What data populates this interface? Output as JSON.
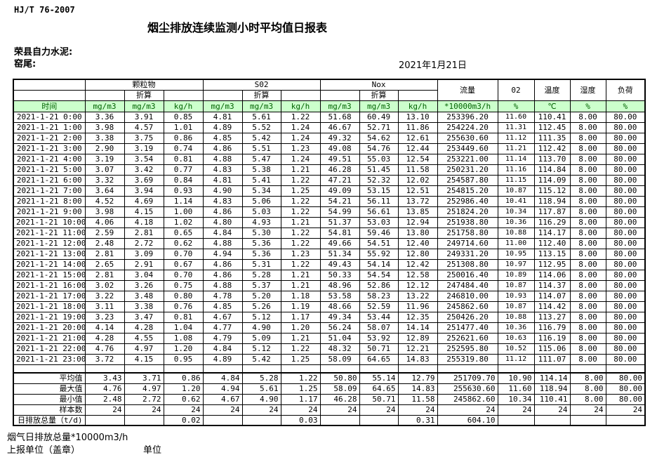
{
  "colors": {
    "unit_row_bg": "#ccffcc",
    "unit_row_text": "#006100",
    "border": "#000000"
  },
  "header": {
    "standard": "HJ/T  76-2007",
    "title": "烟尘排放连续监测小时平均值日报表",
    "company": "荣县自力水泥:",
    "location": "窑尾:",
    "date": "2021年1月21日"
  },
  "table": {
    "time_label": "时间",
    "group_labels": [
      "颗粒物",
      "S02",
      "Nox"
    ],
    "converted_label": "折算",
    "right_headers": [
      "流量",
      "02",
      "温度",
      "湿度",
      "负荷"
    ],
    "units": [
      "mg/m3",
      "mg/m3",
      "kg/h",
      "mg/m3",
      "mg/m3",
      "kg/h",
      "mg/m3",
      "mg/m3",
      "kg/h",
      "*10000m3/h",
      "%",
      "℃",
      "%",
      "%"
    ],
    "rows": [
      {
        "time": "2021-1-21 0:00",
        "values": [
          "3.36",
          "3.91",
          "0.85",
          "4.81",
          "5.61",
          "1.22",
          "51.68",
          "60.49",
          "13.10",
          "253396.20",
          "11.60",
          "110.41",
          "8.00",
          "80.00"
        ]
      },
      {
        "time": "2021-1-21 1:00",
        "values": [
          "3.98",
          "4.57",
          "1.01",
          "4.89",
          "5.52",
          "1.24",
          "46.67",
          "52.71",
          "11.86",
          "254224.20",
          "11.31",
          "112.45",
          "8.00",
          "80.00"
        ]
      },
      {
        "time": "2021-1-21 2:00",
        "values": [
          "3.38",
          "3.75",
          "0.86",
          "4.85",
          "5.42",
          "1.24",
          "49.32",
          "54.62",
          "12.61",
          "255630.60",
          "11.12",
          "111.35",
          "8.00",
          "80.00"
        ]
      },
      {
        "time": "2021-1-21 3:00",
        "values": [
          "2.90",
          "3.19",
          "0.74",
          "4.86",
          "5.51",
          "1.23",
          "49.08",
          "54.76",
          "12.44",
          "253449.60",
          "11.21",
          "112.42",
          "8.00",
          "80.00"
        ]
      },
      {
        "time": "2021-1-21 4:00",
        "values": [
          "3.19",
          "3.54",
          "0.81",
          "4.88",
          "5.47",
          "1.24",
          "49.51",
          "55.03",
          "12.54",
          "253221.00",
          "11.14",
          "113.70",
          "8.00",
          "80.00"
        ]
      },
      {
        "time": "2021-1-21 5:00",
        "values": [
          "3.07",
          "3.42",
          "0.77",
          "4.83",
          "5.38",
          "1.21",
          "46.28",
          "51.45",
          "11.58",
          "250231.20",
          "11.16",
          "114.84",
          "8.00",
          "80.00"
        ]
      },
      {
        "time": "2021-1-21 6:00",
        "values": [
          "3.32",
          "3.69",
          "0.84",
          "4.81",
          "5.41",
          "1.22",
          "47.21",
          "52.32",
          "12.02",
          "254587.80",
          "11.15",
          "114.09",
          "8.00",
          "80.00"
        ]
      },
      {
        "time": "2021-1-21 7:00",
        "values": [
          "3.64",
          "3.94",
          "0.93",
          "4.90",
          "5.34",
          "1.25",
          "49.09",
          "53.15",
          "12.51",
          "254815.20",
          "10.87",
          "115.12",
          "8.00",
          "80.00"
        ]
      },
      {
        "time": "2021-1-21 8:00",
        "values": [
          "4.52",
          "4.69",
          "1.14",
          "4.83",
          "5.06",
          "1.22",
          "54.21",
          "56.11",
          "13.72",
          "252986.40",
          "10.41",
          "118.94",
          "8.00",
          "80.00"
        ]
      },
      {
        "time": "2021-1-21 9:00",
        "values": [
          "3.98",
          "4.15",
          "1.00",
          "4.86",
          "5.03",
          "1.22",
          "54.99",
          "56.61",
          "13.85",
          "251824.20",
          "10.34",
          "117.87",
          "8.00",
          "80.00"
        ]
      },
      {
        "time": "2021-1-21 10:00",
        "values": [
          "4.06",
          "4.18",
          "1.02",
          "4.80",
          "4.93",
          "1.21",
          "51.37",
          "53.03",
          "12.94",
          "251938.80",
          "10.36",
          "116.29",
          "8.00",
          "80.00"
        ]
      },
      {
        "time": "2021-1-21 11:00",
        "values": [
          "2.59",
          "2.81",
          "0.65",
          "4.84",
          "5.30",
          "1.22",
          "54.81",
          "59.46",
          "13.80",
          "251758.80",
          "10.88",
          "114.17",
          "8.00",
          "80.00"
        ]
      },
      {
        "time": "2021-1-21 12:00",
        "values": [
          "2.48",
          "2.72",
          "0.62",
          "4.88",
          "5.36",
          "1.22",
          "49.66",
          "54.51",
          "12.40",
          "249714.60",
          "11.00",
          "112.40",
          "8.00",
          "80.00"
        ]
      },
      {
        "time": "2021-1-21 13:00",
        "values": [
          "2.81",
          "3.09",
          "0.70",
          "4.94",
          "5.36",
          "1.23",
          "51.34",
          "55.92",
          "12.80",
          "249331.20",
          "10.95",
          "113.15",
          "8.00",
          "80.00"
        ]
      },
      {
        "time": "2021-1-21 14:00",
        "values": [
          "2.65",
          "2.91",
          "0.67",
          "4.86",
          "5.31",
          "1.22",
          "49.43",
          "54.14",
          "12.42",
          "251308.80",
          "10.97",
          "112.95",
          "8.00",
          "80.00"
        ]
      },
      {
        "time": "2021-1-21 15:00",
        "values": [
          "2.81",
          "3.04",
          "0.70",
          "4.86",
          "5.28",
          "1.21",
          "50.33",
          "54.54",
          "12.58",
          "250016.40",
          "10.89",
          "114.06",
          "8.00",
          "80.00"
        ]
      },
      {
        "time": "2021-1-21 16:00",
        "values": [
          "3.02",
          "3.26",
          "0.75",
          "4.88",
          "5.37",
          "1.21",
          "48.96",
          "52.86",
          "12.12",
          "247484.40",
          "10.87",
          "114.37",
          "8.00",
          "80.00"
        ]
      },
      {
        "time": "2021-1-21 17:00",
        "values": [
          "3.22",
          "3.48",
          "0.80",
          "4.78",
          "5.20",
          "1.18",
          "53.58",
          "58.23",
          "13.22",
          "246810.00",
          "10.93",
          "114.07",
          "8.00",
          "80.00"
        ]
      },
      {
        "time": "2021-1-21 18:00",
        "values": [
          "3.11",
          "3.38",
          "0.76",
          "4.85",
          "5.26",
          "1.19",
          "48.66",
          "52.59",
          "11.96",
          "245862.60",
          "10.87",
          "114.42",
          "8.00",
          "80.00"
        ]
      },
      {
        "time": "2021-1-21 19:00",
        "values": [
          "3.23",
          "3.47",
          "0.81",
          "4.67",
          "5.12",
          "1.17",
          "49.34",
          "53.44",
          "12.35",
          "250426.20",
          "10.88",
          "113.27",
          "8.00",
          "80.00"
        ]
      },
      {
        "time": "2021-1-21 20:00",
        "values": [
          "4.14",
          "4.28",
          "1.04",
          "4.77",
          "4.90",
          "1.20",
          "56.24",
          "58.07",
          "14.14",
          "251477.40",
          "10.36",
          "116.79",
          "8.00",
          "80.00"
        ]
      },
      {
        "time": "2021-1-21 21:00",
        "values": [
          "4.28",
          "4.55",
          "1.08",
          "4.79",
          "5.09",
          "1.21",
          "51.04",
          "53.92",
          "12.89",
          "252621.60",
          "10.63",
          "116.19",
          "8.00",
          "80.00"
        ]
      },
      {
        "time": "2021-1-21 22:00",
        "values": [
          "4.76",
          "4.97",
          "1.20",
          "4.84",
          "5.12",
          "1.22",
          "48.32",
          "50.71",
          "12.21",
          "252595.80",
          "10.52",
          "115.06",
          "8.00",
          "80.00"
        ]
      },
      {
        "time": "2021-1-21 23:00",
        "values": [
          "3.72",
          "4.15",
          "0.95",
          "4.89",
          "5.42",
          "1.25",
          "58.09",
          "64.65",
          "14.83",
          "255319.80",
          "11.12",
          "111.07",
          "8.00",
          "80.00"
        ]
      }
    ],
    "summary_rows": [
      {
        "label": "平均值",
        "values": [
          "3.43",
          "3.71",
          "0.86",
          "4.84",
          "5.28",
          "1.22",
          "50.80",
          "55.14",
          "12.79",
          "251709.70",
          "10.90",
          "114.14",
          "8.00",
          "80.00"
        ]
      },
      {
        "label": "最大值",
        "values": [
          "4.76",
          "4.97",
          "1.20",
          "4.94",
          "5.61",
          "1.25",
          "58.09",
          "64.65",
          "14.83",
          "255630.60",
          "11.60",
          "118.94",
          "8.00",
          "80.00"
        ]
      },
      {
        "label": "最小值",
        "values": [
          "2.48",
          "2.72",
          "0.62",
          "4.67",
          "4.90",
          "1.17",
          "46.28",
          "50.71",
          "11.58",
          "245862.60",
          "10.34",
          "110.41",
          "8.00",
          "80.00"
        ]
      },
      {
        "label": "样本数",
        "values": [
          "24",
          "24",
          "24",
          "24",
          "24",
          "24",
          "24",
          "24",
          "24",
          "24",
          "24",
          "24",
          "24",
          "24"
        ]
      },
      {
        "label": "日排放总量（t/d)",
        "label_align": "left",
        "values": [
          "",
          "",
          "0.02",
          "",
          "",
          "0.03",
          "",
          "",
          "0.31",
          "604.10",
          "",
          "",
          "",
          ""
        ]
      }
    ]
  },
  "footer": {
    "note": "烟气日排放总量*10000m3/h",
    "report_unit": "上报单位（盖章）",
    "unit": "单位"
  }
}
